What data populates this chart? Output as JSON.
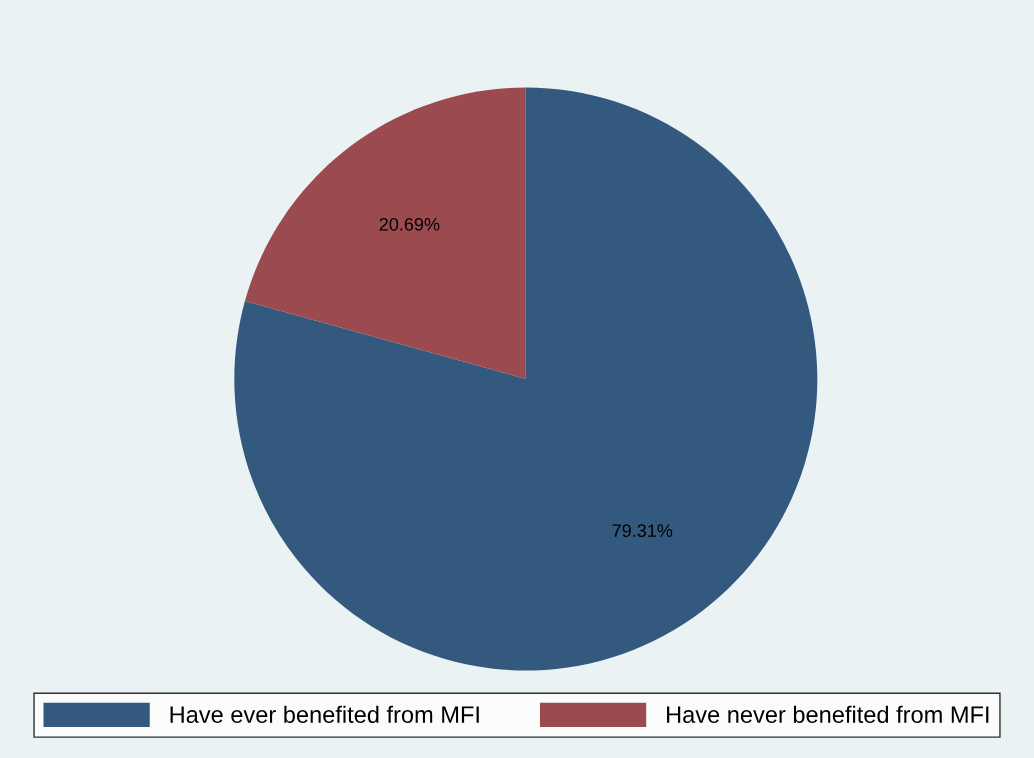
{
  "chart_data": {
    "type": "pie",
    "categories": [
      "Have ever benefited from MFI",
      "Have never benefited from MFI"
    ],
    "values": [
      79.31,
      20.69
    ],
    "colors": [
      "#335a7e",
      "#9b4a4f"
    ],
    "value_labels": [
      "79.31%",
      "20.69%"
    ],
    "legend": "bottom"
  }
}
